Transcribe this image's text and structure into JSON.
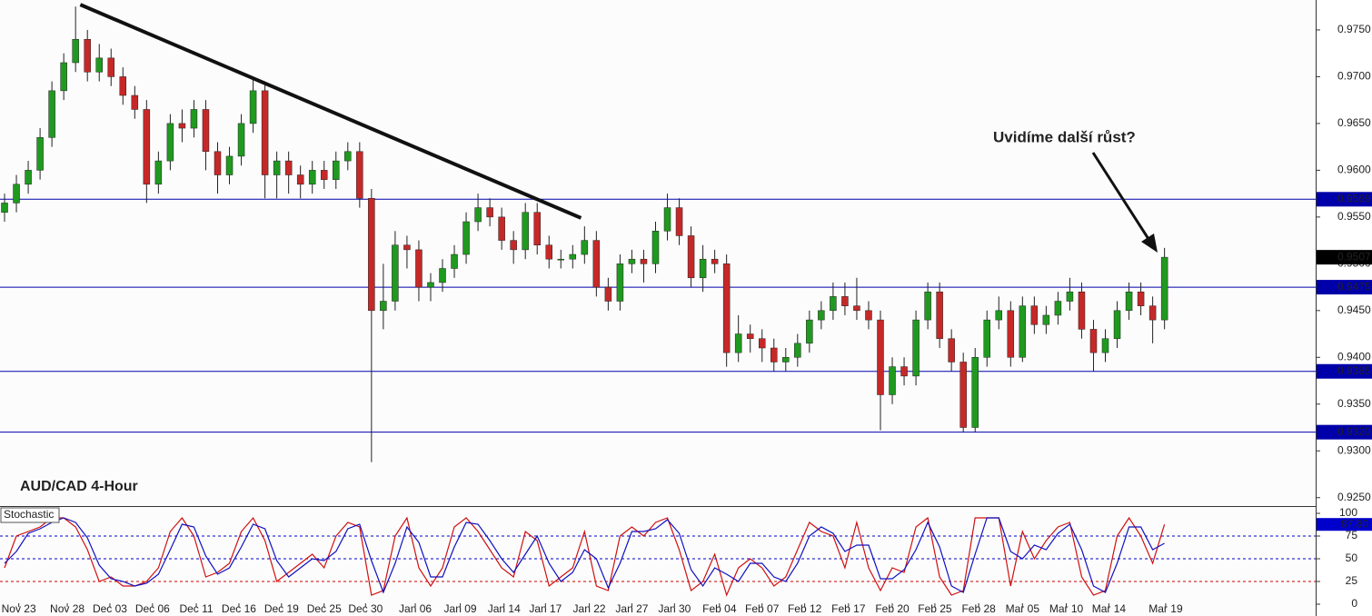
{
  "chart_data": [
    {
      "type": "candlestick",
      "title": "AUD/CAD 4-Hour",
      "annotation": "Uvidíme další růst?",
      "xlim": [
        -0.385,
        110.77
      ],
      "ylim": [
        0.9241,
        0.9782
      ],
      "yticks": [
        {
          "value": 0.925,
          "label": "0.9250"
        },
        {
          "value": 0.93,
          "label": "0.9300"
        },
        {
          "value": 0.935,
          "label": "0.9350"
        },
        {
          "value": 0.94,
          "label": "0.9400"
        },
        {
          "value": 0.945,
          "label": "0.9450"
        },
        {
          "value": 0.95,
          "label": "0.9500"
        },
        {
          "value": 0.955,
          "label": "0.9550"
        },
        {
          "value": 0.96,
          "label": "0.9600"
        },
        {
          "value": 0.965,
          "label": "0.9650"
        },
        {
          "value": 0.97,
          "label": "0.9700"
        },
        {
          "value": 0.975,
          "label": "0.9750"
        }
      ],
      "up_color": "#1f9a1f",
      "down_color": "#c62828",
      "wick_color": "#222222",
      "open": [
        0.9555,
        0.9565,
        0.9585,
        0.96,
        0.9635,
        0.9685,
        0.9715,
        0.974,
        0.9705,
        0.972,
        0.97,
        0.968,
        0.9665,
        0.9585,
        0.961,
        0.965,
        0.9645,
        0.9665,
        0.962,
        0.9595,
        0.9615,
        0.965,
        0.9685,
        0.9595,
        0.961,
        0.9595,
        0.9585,
        0.96,
        0.959,
        0.961,
        0.962,
        0.957,
        0.945,
        0.946,
        0.952,
        0.9515,
        0.9475,
        0.948,
        0.9495,
        0.951,
        0.9545,
        0.956,
        0.955,
        0.9525,
        0.9515,
        0.9555,
        0.952,
        0.9505,
        0.9505,
        0.951,
        0.9525,
        0.9475,
        0.946,
        0.95,
        0.9505,
        0.95,
        0.9535,
        0.956,
        0.953,
        0.9485,
        0.9505,
        0.95,
        0.9405,
        0.9425,
        0.942,
        0.941,
        0.9395,
        0.94,
        0.9415,
        0.944,
        0.945,
        0.9465,
        0.9455,
        0.945,
        0.944,
        0.936,
        0.939,
        0.938,
        0.944,
        0.947,
        0.942,
        0.9395,
        0.9325,
        0.94,
        0.944,
        0.945,
        0.94,
        0.9455,
        0.9435,
        0.9445,
        0.946,
        0.947,
        0.943,
        0.9405,
        0.942,
        0.945,
        0.947,
        0.9455,
        0.944
      ],
      "high": [
        0.9575,
        0.9595,
        0.961,
        0.9645,
        0.9695,
        0.9725,
        0.9775,
        0.975,
        0.9735,
        0.973,
        0.971,
        0.969,
        0.9675,
        0.962,
        0.966,
        0.9665,
        0.9675,
        0.9675,
        0.963,
        0.9625,
        0.966,
        0.97,
        0.9695,
        0.962,
        0.962,
        0.9605,
        0.961,
        0.961,
        0.962,
        0.963,
        0.963,
        0.958,
        0.95,
        0.9535,
        0.953,
        0.9525,
        0.949,
        0.9505,
        0.952,
        0.9555,
        0.9575,
        0.957,
        0.956,
        0.9535,
        0.9565,
        0.9565,
        0.953,
        0.9515,
        0.952,
        0.954,
        0.9535,
        0.9485,
        0.951,
        0.9515,
        0.9515,
        0.9545,
        0.9575,
        0.957,
        0.954,
        0.952,
        0.9515,
        0.951,
        0.9445,
        0.9435,
        0.943,
        0.942,
        0.941,
        0.9425,
        0.945,
        0.946,
        0.948,
        0.948,
        0.9485,
        0.946,
        0.945,
        0.94,
        0.94,
        0.945,
        0.948,
        0.948,
        0.943,
        0.9405,
        0.941,
        0.945,
        0.9465,
        0.946,
        0.9465,
        0.9465,
        0.9455,
        0.947,
        0.9485,
        0.948,
        0.944,
        0.943,
        0.946,
        0.948,
        0.948,
        0.9465,
        0.9517
      ],
      "low": [
        0.9545,
        0.9555,
        0.9575,
        0.959,
        0.9625,
        0.9675,
        0.9705,
        0.9695,
        0.9695,
        0.969,
        0.967,
        0.9655,
        0.9565,
        0.9575,
        0.96,
        0.963,
        0.9635,
        0.96,
        0.9575,
        0.9585,
        0.9605,
        0.964,
        0.957,
        0.957,
        0.9575,
        0.957,
        0.9575,
        0.958,
        0.958,
        0.96,
        0.956,
        0.9288,
        0.943,
        0.945,
        0.9495,
        0.946,
        0.946,
        0.947,
        0.9485,
        0.95,
        0.9535,
        0.954,
        0.9515,
        0.95,
        0.9505,
        0.951,
        0.9495,
        0.9495,
        0.9495,
        0.95,
        0.9465,
        0.945,
        0.945,
        0.949,
        0.948,
        0.949,
        0.9525,
        0.952,
        0.9475,
        0.947,
        0.949,
        0.939,
        0.9395,
        0.9405,
        0.9395,
        0.9385,
        0.9385,
        0.939,
        0.9405,
        0.943,
        0.944,
        0.9445,
        0.944,
        0.943,
        0.9322,
        0.935,
        0.937,
        0.937,
        0.943,
        0.941,
        0.9385,
        0.932,
        0.932,
        0.939,
        0.943,
        0.939,
        0.9395,
        0.9425,
        0.9425,
        0.9435,
        0.945,
        0.942,
        0.9385,
        0.9395,
        0.941,
        0.944,
        0.9445,
        0.9415,
        0.943
      ],
      "close": [
        0.9565,
        0.9585,
        0.96,
        0.9635,
        0.9685,
        0.9715,
        0.974,
        0.9705,
        0.972,
        0.97,
        0.968,
        0.9665,
        0.9585,
        0.961,
        0.965,
        0.9645,
        0.9665,
        0.962,
        0.9595,
        0.9615,
        0.965,
        0.9685,
        0.9595,
        0.961,
        0.9595,
        0.9585,
        0.96,
        0.959,
        0.961,
        0.962,
        0.957,
        0.945,
        0.946,
        0.952,
        0.9515,
        0.9475,
        0.948,
        0.9495,
        0.951,
        0.9545,
        0.956,
        0.955,
        0.9525,
        0.9515,
        0.9555,
        0.952,
        0.9505,
        0.9505,
        0.951,
        0.9525,
        0.9475,
        0.946,
        0.95,
        0.9505,
        0.95,
        0.9535,
        0.956,
        0.953,
        0.9485,
        0.9505,
        0.95,
        0.9405,
        0.9425,
        0.942,
        0.941,
        0.9395,
        0.94,
        0.9415,
        0.944,
        0.945,
        0.9465,
        0.9455,
        0.945,
        0.944,
        0.936,
        0.939,
        0.938,
        0.944,
        0.947,
        0.942,
        0.9395,
        0.9325,
        0.94,
        0.944,
        0.945,
        0.94,
        0.9455,
        0.9435,
        0.9445,
        0.946,
        0.947,
        0.943,
        0.9405,
        0.942,
        0.945,
        0.947,
        0.9455,
        0.944,
        0.9507
      ],
      "levels": [
        0.9569,
        0.9475,
        0.9385,
        {
          "value": 0.932,
          "label": "0.9320"
        }
      ],
      "level_color": "#0000aa",
      "current": 0.9507,
      "trendline": {
        "x": [
          6.4,
          48.7
        ],
        "y": [
          0.9777,
          0.9549
        ]
      }
    },
    {
      "type": "line",
      "title": "Stochastic",
      "xlim": [
        -0.385,
        110.77
      ],
      "ylim": [
        -13,
        107
      ],
      "yticks": [
        0,
        25,
        50,
        75,
        100
      ],
      "levels": [
        75,
        50,
        25
      ],
      "level_colors": [
        "#0000cc",
        "#0000cc",
        "#cc0000"
      ],
      "xticks": [
        {
          "value": 1.2,
          "label": "Nov 23"
        },
        {
          "value": 5.3,
          "label": "Nov 28"
        },
        {
          "value": 8.9,
          "label": "Dec 03"
        },
        {
          "value": 12.5,
          "label": "Dec 06"
        },
        {
          "value": 16.2,
          "label": "Dec 11"
        },
        {
          "value": 19.8,
          "label": "Dec 16"
        },
        {
          "value": 23.4,
          "label": "Dec 19"
        },
        {
          "value": 27,
          "label": "Dec 25"
        },
        {
          "value": 30.5,
          "label": "Dec 30"
        },
        {
          "value": 34.7,
          "label": "Jan 06"
        },
        {
          "value": 38.5,
          "label": "Jan 09"
        },
        {
          "value": 42.2,
          "label": "Jan 14"
        },
        {
          "value": 45.7,
          "label": "Jan 17"
        },
        {
          "value": 49.4,
          "label": "Jan 22"
        },
        {
          "value": 53,
          "label": "Jan 27"
        },
        {
          "value": 56.6,
          "label": "Jan 30"
        },
        {
          "value": 60.4,
          "label": "Feb 04"
        },
        {
          "value": 64,
          "label": "Feb 07"
        },
        {
          "value": 67.6,
          "label": "Feb 12"
        },
        {
          "value": 71.3,
          "label": "Feb 17"
        },
        {
          "value": 75,
          "label": "Feb 20"
        },
        {
          "value": 78.6,
          "label": "Feb 25"
        },
        {
          "value": 82.3,
          "label": "Feb 28"
        },
        {
          "value": 86,
          "label": "Mar 05"
        },
        {
          "value": 89.7,
          "label": "Mar 10"
        },
        {
          "value": 93.3,
          "label": "Mar 14"
        },
        {
          "value": 98.1,
          "label": "Mar 19"
        }
      ],
      "current": {
        "value": 87.8,
        "label": "87.80"
      },
      "current_color": "#0000cc",
      "series": [
        {
          "color": "#d01010",
          "values": [
            40,
            75,
            80,
            85,
            95,
            95,
            85,
            60,
            25,
            30,
            20,
            20,
            25,
            40,
            80,
            95,
            75,
            30,
            35,
            45,
            80,
            95,
            70,
            25,
            35,
            45,
            55,
            40,
            75,
            90,
            85,
            10,
            15,
            75,
            95,
            40,
            20,
            40,
            85,
            95,
            80,
            60,
            40,
            30,
            80,
            70,
            20,
            30,
            40,
            80,
            20,
            15,
            75,
            85,
            75,
            90,
            95,
            60,
            15,
            25,
            55,
            10,
            40,
            50,
            40,
            20,
            30,
            60,
            90,
            80,
            75,
            40,
            90,
            40,
            15,
            40,
            35,
            85,
            95,
            30,
            10,
            15,
            95,
            95,
            95,
            20,
            80,
            50,
            70,
            85,
            90,
            30,
            10,
            15,
            75,
            95,
            75,
            45,
            87.8
          ]
        },
        {
          "color": "#1010c0",
          "values": [
            45,
            58,
            78,
            83,
            90,
            95,
            90,
            73,
            43,
            28,
            25,
            20,
            23,
            33,
            60,
            88,
            85,
            53,
            33,
            40,
            63,
            88,
            83,
            48,
            30,
            40,
            50,
            48,
            58,
            83,
            88,
            48,
            13,
            45,
            85,
            68,
            30,
            30,
            63,
            90,
            88,
            70,
            50,
            35,
            55,
            75,
            45,
            25,
            35,
            60,
            50,
            18,
            45,
            80,
            80,
            83,
            93,
            78,
            38,
            20,
            40,
            33,
            25,
            45,
            45,
            30,
            25,
            45,
            75,
            85,
            78,
            58,
            65,
            65,
            28,
            28,
            38,
            60,
            90,
            63,
            20,
            13,
            55,
            95,
            95,
            58,
            50,
            65,
            60,
            78,
            88,
            60,
            20,
            13,
            45,
            85,
            85,
            60,
            67
          ]
        }
      ]
    }
  ]
}
